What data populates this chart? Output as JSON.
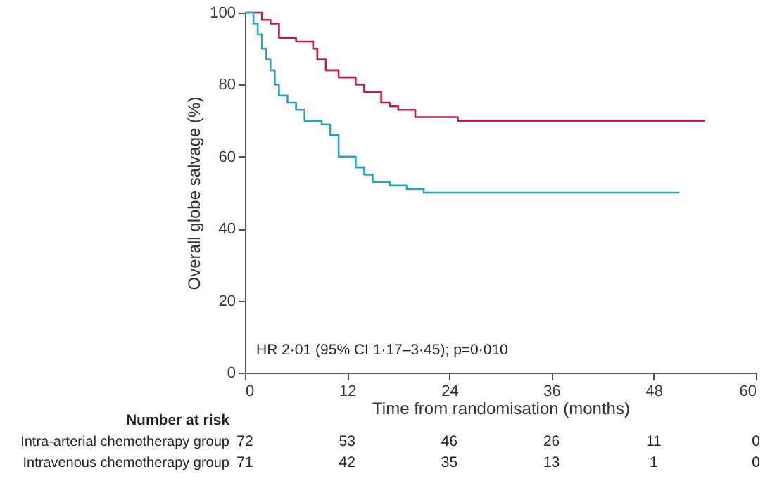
{
  "chart_data": {
    "type": "step",
    "xlabel": "Time from randomisation (months)",
    "ylabel": "Overall globe salvage (%)",
    "xlim": [
      0,
      60
    ],
    "xticks": [
      0,
      12,
      24,
      36,
      48,
      60
    ],
    "ylim": [
      0,
      100
    ],
    "yticks": [
      0,
      20,
      40,
      60,
      80,
      100
    ],
    "line_style": "solid",
    "series": [
      {
        "color": "#c4184c",
        "x": [
          0,
          2,
          3,
          4,
          6,
          8,
          8.5,
          9.5,
          11,
          13,
          14,
          16,
          17,
          18,
          20,
          25,
          54
        ],
        "values": [
          100,
          98,
          97,
          93,
          92,
          90,
          87,
          84,
          82,
          80,
          78,
          75,
          74,
          73,
          71,
          70,
          70
        ]
      },
      {
        "color": "#1ea5c9",
        "x": [
          0,
          1,
          1.5,
          2,
          2.5,
          3,
          3.5,
          4,
          5,
          6,
          7,
          9,
          10,
          11,
          13,
          14,
          15,
          17,
          19,
          21,
          51
        ],
        "values": [
          100,
          97,
          94,
          90,
          87,
          84,
          80,
          77,
          75,
          73,
          70,
          69,
          66,
          60,
          57,
          55,
          53,
          52,
          51,
          50,
          50
        ]
      }
    ],
    "annotations": [
      "HR 2·01 (95% CI 1·17–3·45); p=0·010",
      "Number at risk",
      "Intra-arterial chemotherapy group",
      "72",
      "53",
      "46",
      "26",
      "11",
      "0",
      "Intravenous chemotherapy group",
      "71",
      "42",
      "35",
      "13",
      "1",
      "0"
    ]
  }
}
